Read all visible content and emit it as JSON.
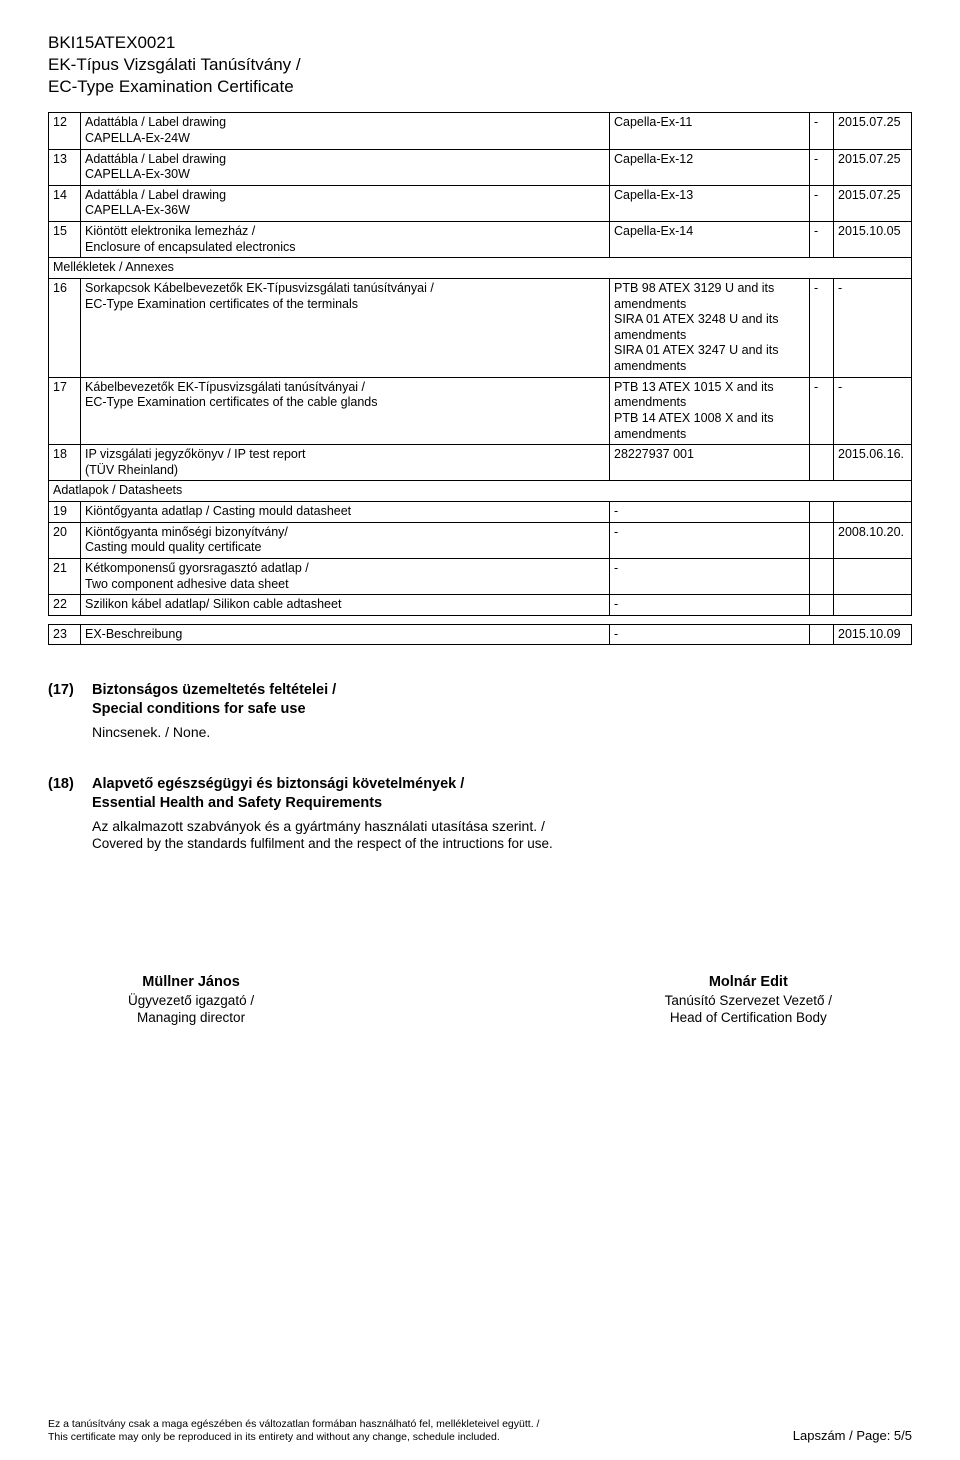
{
  "header": {
    "code": "BKI15ATEX0021",
    "line1": "EK-Típus Vizsgálati Tanúsítvány /",
    "line2": "EC-Type Examination Certificate"
  },
  "rows": [
    {
      "n": "12",
      "desc": "Adattábla / Label drawing\nCAPELLA-Ex-24W",
      "c2": "Capella-Ex-11",
      "c3": "-",
      "c4": "2015.07.25"
    },
    {
      "n": "13",
      "desc": "Adattábla / Label drawing\nCAPELLA-Ex-30W",
      "c2": "Capella-Ex-12",
      "c3": "-",
      "c4": "2015.07.25"
    },
    {
      "n": "14",
      "desc": "Adattábla / Label drawing\nCAPELLA-Ex-36W",
      "c2": "Capella-Ex-13",
      "c3": "-",
      "c4": "2015.07.25"
    },
    {
      "n": "15",
      "desc": "Kiöntött elektronika lemezház /\nEnclosure of encapsulated electronics",
      "c2": "Capella-Ex-14",
      "c3": "-",
      "c4": "2015.10.05"
    }
  ],
  "section1": "Mellékletek / Annexes",
  "rows2": [
    {
      "n": "16",
      "desc": "Sorkapcsok Kábelbevezetők EK-Típusvizsgálati tanúsítványai /\nEC-Type Examination certificates of the terminals",
      "c2": "PTB 98 ATEX 3129 U and its amendments\nSIRA 01 ATEX 3248 U and its amendments\nSIRA 01 ATEX 3247 U and its amendments",
      "c3": "-",
      "c4": "-"
    },
    {
      "n": "17",
      "desc": "Kábelbevezetők EK-Típusvizsgálati tanúsítványai /\nEC-Type Examination certificates of the cable glands",
      "c2": "PTB 13 ATEX 1015 X and its amendments\nPTB 14 ATEX 1008 X and its amendments",
      "c3": "-",
      "c4": "-"
    },
    {
      "n": "18",
      "desc": "IP vizsgálati jegyzőkönyv / IP test report\n(TÜV Rheinland)",
      "c2": "28227937 001",
      "c3": "",
      "c4": "2015.06.16."
    }
  ],
  "section2": "Adatlapok / Datasheets",
  "rows3": [
    {
      "n": "19",
      "desc": "Kiöntőgyanta adatlap / Casting mould datasheet",
      "c2": "-",
      "c3": "",
      "c4": ""
    },
    {
      "n": "20",
      "desc": "Kiöntőgyanta minőségi bizonyítvány/\nCasting mould quality certificate",
      "c2": "-",
      "c3": "",
      "c4": "2008.10.20."
    },
    {
      "n": "21",
      "desc": "Kétkomponensű gyorsragasztó adatlap /\nTwo component adhesive data sheet",
      "c2": "-",
      "c3": "",
      "c4": ""
    },
    {
      "n": "22",
      "desc": "Szilikon kábel adatlap/ Silikon cable adtasheet",
      "c2": "-",
      "c3": "",
      "c4": ""
    }
  ],
  "row23": {
    "n": "23",
    "desc": "EX-Beschreibung",
    "c2": "-",
    "c3": "",
    "c4": "2015.10.09"
  },
  "s17": {
    "num": "(17)",
    "title": "Biztonságos üzemeltetés feltételei /\nSpecial conditions for safe use",
    "body": "Nincsenek. / None."
  },
  "s18": {
    "num": "(18)",
    "title": "Alapvető egészségügyi és biztonsági követelmények /\nEssential Health and Safety Requirements",
    "body1": "Az alkalmazott szabványok és a gyártmány használati utasítása szerint. /",
    "body2": "Covered by the standards fulfilment and the respect of the intructions for use."
  },
  "sig": {
    "left_name": "Müllner János",
    "left_role1": "Ügyvezető igazgató /",
    "left_role2": "Managing director",
    "right_name": "Molnár Edit",
    "right_role1": "Tanúsító Szervezet Vezető /",
    "right_role2": "Head of Certification Body"
  },
  "footer": {
    "left1": "Ez a tanúsítvány csak a maga egészében és változatlan formában használható fel, mellékleteivel együtt. /",
    "left2": "This certificate may only be reproduced in its entirety and without any change, schedule included.",
    "right": "Lapszám / Page: 5/5"
  }
}
